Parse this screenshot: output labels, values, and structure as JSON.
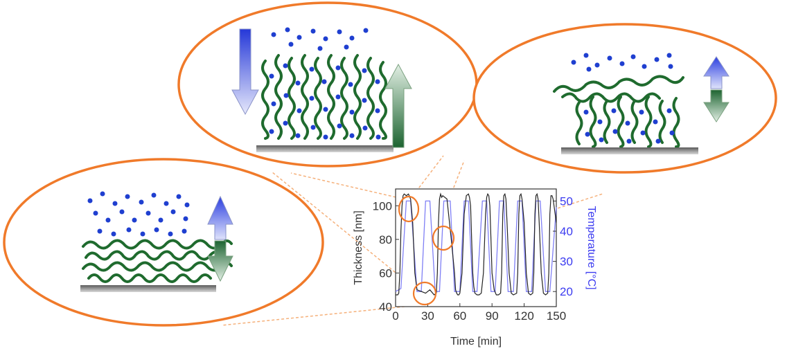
{
  "chart_data": {
    "type": "line",
    "xlabel": "Time [min]",
    "ylabel": "Thickness [nm]",
    "y2label": "Temperature [°C]",
    "xlim": [
      0,
      150
    ],
    "ylim": [
      40,
      110
    ],
    "y2lim": [
      15,
      54
    ],
    "xticks": [
      "0",
      "30",
      "60",
      "90",
      "120",
      "150"
    ],
    "yticks": [
      "40",
      "60",
      "80",
      "100"
    ],
    "y2ticks": [
      "20",
      "30",
      "40",
      "50"
    ],
    "series": [
      {
        "axis": "left",
        "color": "#222222",
        "x": [
          0,
          2,
          3,
          4,
          5,
          6,
          7,
          8,
          10,
          12,
          14,
          16,
          18,
          20,
          24,
          28,
          32,
          36,
          38,
          39,
          40,
          41,
          42,
          43,
          44,
          48,
          52,
          55,
          56,
          57,
          58,
          59,
          60,
          62,
          64,
          66,
          68,
          69,
          70,
          71,
          72,
          73,
          74,
          76,
          78,
          80,
          82,
          84,
          85,
          86,
          87,
          88,
          89,
          90,
          92,
          94,
          96,
          98,
          99,
          100,
          101,
          102,
          103,
          104,
          106,
          108,
          110,
          113,
          114,
          115,
          116,
          117,
          118,
          120,
          122,
          124,
          126,
          128,
          129,
          130,
          131,
          132,
          133,
          134,
          136,
          138,
          140,
          142,
          143,
          144,
          145,
          146,
          147,
          150
        ],
        "y": [
          47,
          47,
          48,
          60,
          85,
          100,
          106,
          107,
          106,
          107,
          104,
          90,
          60,
          50,
          49,
          48,
          50,
          47,
          48,
          60,
          90,
          104,
          107,
          105,
          106,
          104,
          80,
          60,
          50,
          48,
          47,
          47,
          48,
          60,
          95,
          106,
          107,
          105,
          100,
          80,
          60,
          52,
          48,
          47,
          47,
          48,
          60,
          95,
          105,
          107,
          106,
          100,
          80,
          60,
          50,
          47,
          47,
          48,
          60,
          95,
          106,
          107,
          104,
          90,
          60,
          48,
          47,
          48,
          60,
          95,
          106,
          107,
          104,
          90,
          60,
          48,
          47,
          48,
          60,
          95,
          106,
          107,
          104,
          90,
          60,
          48,
          47,
          48,
          60,
          95,
          106,
          106,
          104,
          90
        ]
      },
      {
        "axis": "right",
        "color": "#7f7ff5",
        "x": [
          0,
          5,
          10,
          14,
          20,
          24,
          28,
          32,
          37,
          41,
          45,
          51,
          55,
          60,
          64,
          68,
          72,
          76,
          81,
          85,
          89,
          93,
          97,
          101,
          105,
          110,
          114,
          118,
          122,
          127,
          131,
          135,
          140,
          144,
          150
        ],
        "y": [
          20,
          21,
          50,
          50,
          20,
          20,
          50,
          50,
          20,
          20,
          50,
          50,
          20,
          20,
          50,
          50,
          20,
          20,
          50,
          50,
          20,
          20,
          50,
          50,
          20,
          20,
          50,
          50,
          20,
          20,
          50,
          50,
          20,
          20,
          48
        ]
      }
    ]
  },
  "colors": {
    "ellipse_stroke": "#f07a2a",
    "guide_line": "#f5b07a",
    "polymer": "#1f6b2e",
    "molecule": "#1f3fd0",
    "substrate": "#8a8a8a",
    "arrow_blue": "#3a4fe0",
    "arrow_green": "#2f7a46"
  }
}
